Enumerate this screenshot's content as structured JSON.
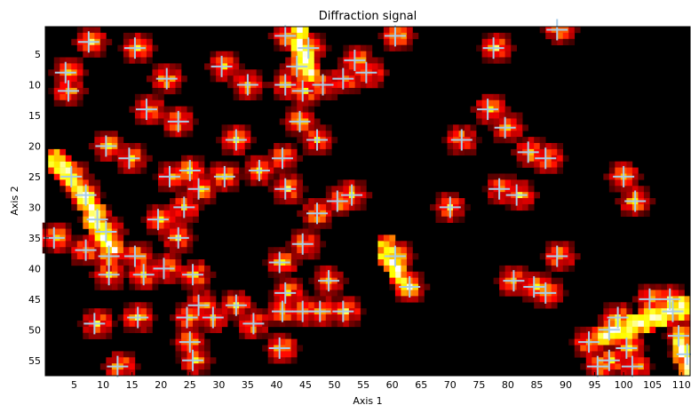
{
  "chart_data": {
    "type": "heatmap",
    "title": "Diffraction signal",
    "xlabel": "Axis 1",
    "ylabel": "Axis 2",
    "xlim": [
      0,
      111.5
    ],
    "ylim": [
      0.5,
      57.5
    ],
    "y_inverted": true,
    "x_ticks": [
      5,
      10,
      15,
      20,
      25,
      30,
      35,
      40,
      45,
      50,
      55,
      60,
      65,
      70,
      75,
      80,
      85,
      90,
      95,
      100,
      105,
      110
    ],
    "y_ticks": [
      5,
      10,
      15,
      20,
      25,
      30,
      35,
      40,
      45,
      50,
      55
    ],
    "colormap": "hot",
    "background_color": "#000000",
    "marker_color": "#a8cde8",
    "marker_style": "plus",
    "peaks": [
      [
        60.5,
        2
      ],
      [
        41.5,
        2
      ],
      [
        88.5,
        1
      ],
      [
        7.5,
        3
      ],
      [
        15.5,
        4
      ],
      [
        45.5,
        4
      ],
      [
        77.5,
        4
      ],
      [
        53.5,
        6
      ],
      [
        43.5,
        7
      ],
      [
        30.5,
        7
      ],
      [
        3.5,
        8
      ],
      [
        55.5,
        8
      ],
      [
        21,
        9
      ],
      [
        51.5,
        9
      ],
      [
        4,
        11
      ],
      [
        35,
        10
      ],
      [
        41.5,
        10
      ],
      [
        44.5,
        11
      ],
      [
        48,
        10
      ],
      [
        17.5,
        14
      ],
      [
        23,
        16
      ],
      [
        44,
        16
      ],
      [
        76.5,
        14
      ],
      [
        79.5,
        17
      ],
      [
        10.5,
        20
      ],
      [
        33,
        19
      ],
      [
        47,
        19
      ],
      [
        72,
        19
      ],
      [
        14.5,
        22
      ],
      [
        41,
        22
      ],
      [
        83.5,
        21
      ],
      [
        86.5,
        22
      ],
      [
        21.5,
        25
      ],
      [
        25,
        24
      ],
      [
        31,
        25
      ],
      [
        37,
        24
      ],
      [
        100,
        25
      ],
      [
        4.5,
        25
      ],
      [
        7,
        28
      ],
      [
        24,
        30
      ],
      [
        26.5,
        27
      ],
      [
        41.5,
        27
      ],
      [
        53,
        28
      ],
      [
        50.5,
        29
      ],
      [
        47,
        31
      ],
      [
        70,
        30
      ],
      [
        78.5,
        27
      ],
      [
        81.5,
        28
      ],
      [
        102,
        29
      ],
      [
        9,
        32
      ],
      [
        10.5,
        34
      ],
      [
        19.5,
        32
      ],
      [
        23,
        35
      ],
      [
        1.5,
        35
      ],
      [
        44.5,
        36
      ],
      [
        7,
        37
      ],
      [
        11,
        38
      ],
      [
        15.5,
        38
      ],
      [
        20.5,
        40
      ],
      [
        17,
        41
      ],
      [
        11,
        41
      ],
      [
        40.5,
        39
      ],
      [
        60.5,
        38
      ],
      [
        88.5,
        38
      ],
      [
        25.5,
        41
      ],
      [
        49,
        42
      ],
      [
        63,
        43
      ],
      [
        81,
        42
      ],
      [
        84.5,
        43
      ],
      [
        86.5,
        44
      ],
      [
        26.5,
        46
      ],
      [
        33,
        46
      ],
      [
        41.5,
        44
      ],
      [
        24.5,
        48
      ],
      [
        29,
        48
      ],
      [
        41,
        47
      ],
      [
        44.5,
        47
      ],
      [
        47.5,
        47
      ],
      [
        51.5,
        47
      ],
      [
        36,
        49
      ],
      [
        8.5,
        49
      ],
      [
        16,
        48
      ],
      [
        25,
        52
      ],
      [
        25.5,
        55
      ],
      [
        12.5,
        56
      ],
      [
        40.5,
        53
      ],
      [
        99,
        48
      ],
      [
        97.5,
        50
      ],
      [
        94,
        52
      ],
      [
        95.5,
        56
      ],
      [
        100.5,
        53
      ],
      [
        97.5,
        55
      ],
      [
        101.5,
        56
      ],
      [
        104.5,
        45
      ],
      [
        108,
        45
      ],
      [
        108.5,
        47
      ],
      [
        109.5,
        51
      ],
      [
        111,
        54
      ]
    ],
    "hot_ridges": [
      [
        43.5,
        1,
        45.5,
        8
      ],
      [
        2,
        22,
        9,
        31
      ],
      [
        8,
        31,
        11.5,
        37
      ],
      [
        58.5,
        36,
        62.5,
        43
      ],
      [
        96,
        51,
        111,
        46
      ],
      [
        109.5,
        51,
        111.5,
        57
      ]
    ]
  }
}
